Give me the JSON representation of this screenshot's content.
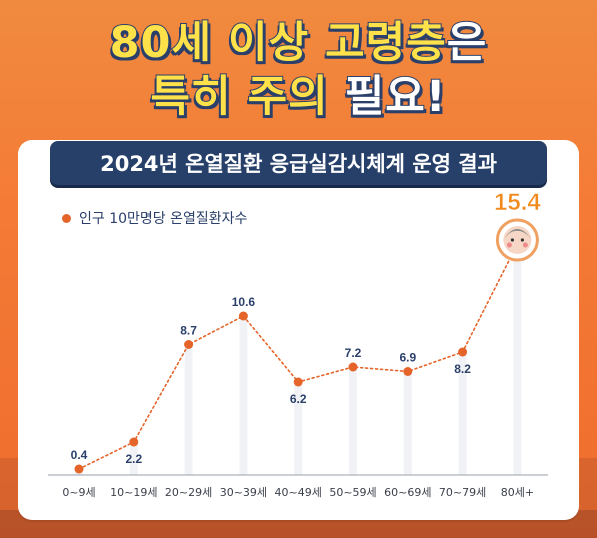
{
  "headline": {
    "line1_a": "80세 이상 고령층",
    "line1_b": "은",
    "line2_a": "특히 주의",
    "line2_b": " 필요!"
  },
  "banner_title": "2024년 온열질환 응급실감시체계 운영 결과",
  "chart_data": {
    "type": "line",
    "legend": "인구 10만명당 온열질환자수",
    "categories": [
      "0~9세",
      "10~19세",
      "20~29세",
      "30~39세",
      "40~49세",
      "50~59세",
      "60~69세",
      "70~79세",
      "80세+"
    ],
    "series": [
      {
        "name": "인구 10만명당 온열질환자수",
        "values": [
          0.4,
          2.2,
          8.7,
          10.6,
          6.2,
          7.2,
          6.9,
          8.2,
          15.4
        ]
      }
    ],
    "highlight_index": 8,
    "ylim": [
      0,
      16
    ],
    "grid": false,
    "colors": {
      "line": "#e5642a",
      "point": "#e5642a",
      "label": "#2a3f6a",
      "highlight": "#f08a1c"
    }
  }
}
